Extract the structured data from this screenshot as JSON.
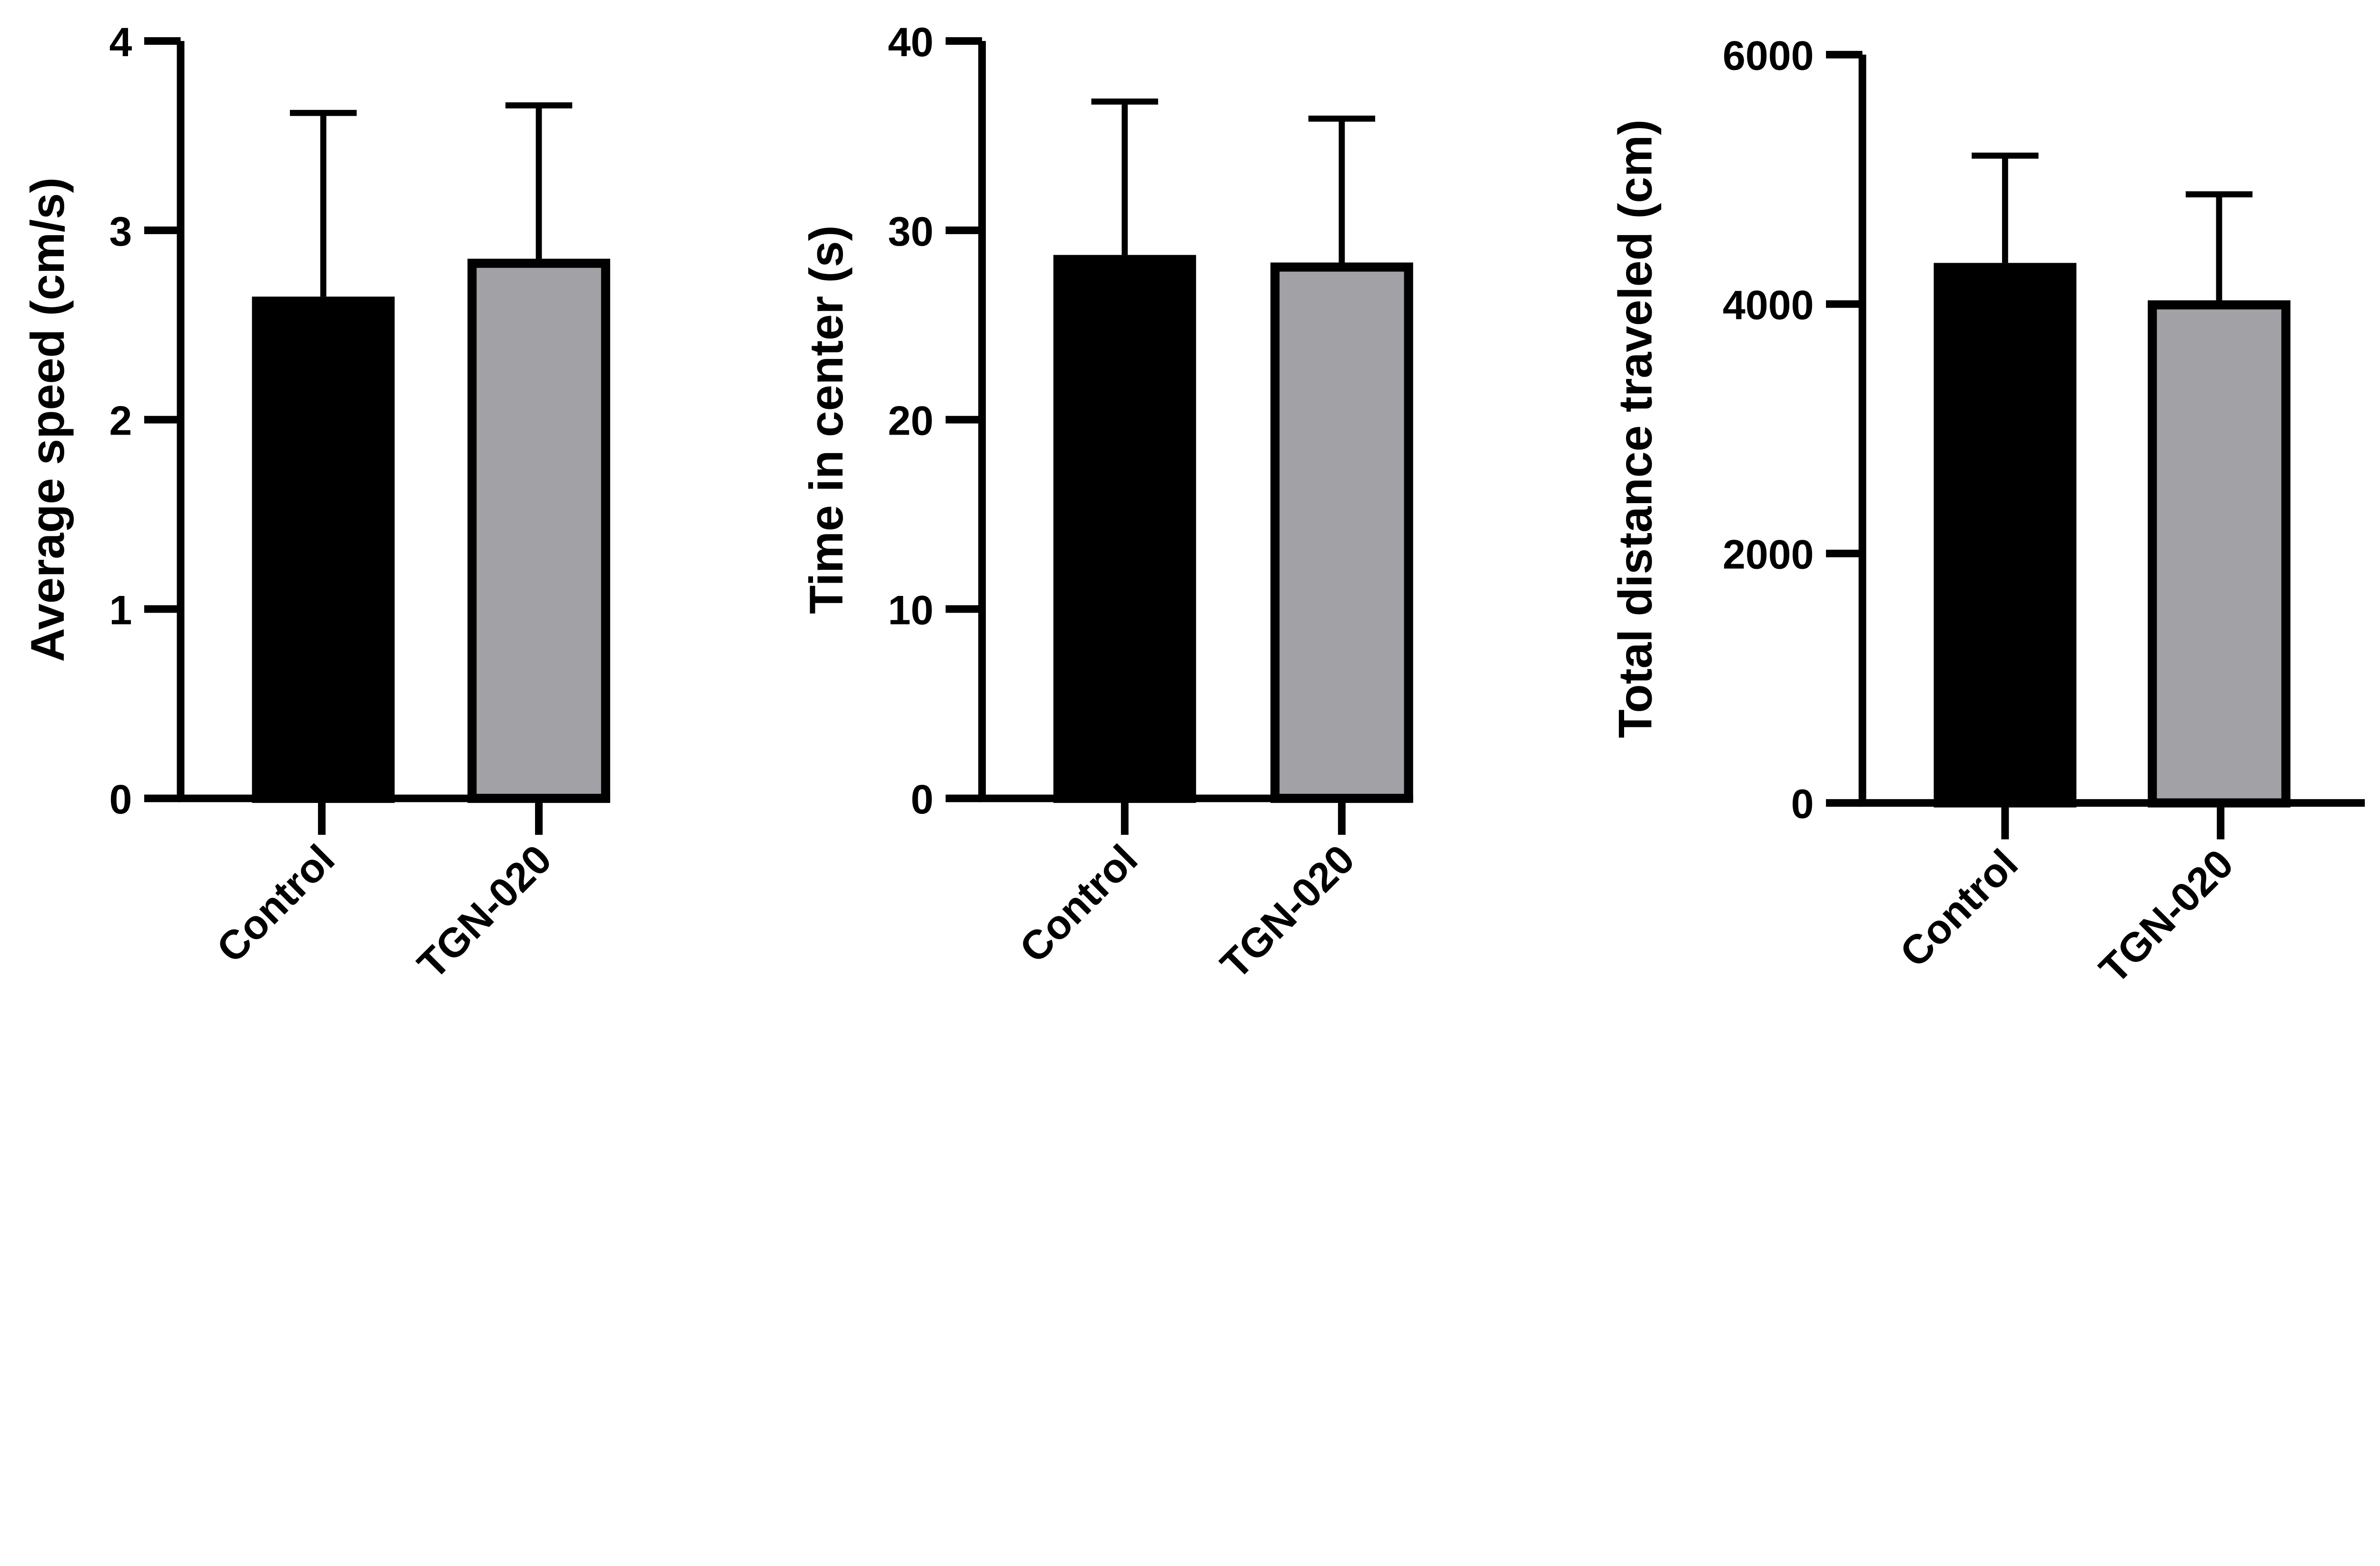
{
  "chart_data": [
    {
      "type": "bar",
      "categories": [
        "Control",
        "TGN-020"
      ],
      "values": [
        2.65,
        2.85
      ],
      "error_upper": [
        3.62,
        3.66
      ],
      "ylabel": "Average speed (cm/s)",
      "ylim": [
        0,
        4
      ],
      "yticks": [
        "0",
        "1",
        "2",
        "3",
        "4"
      ],
      "grid": false
    },
    {
      "type": "bar",
      "categories": [
        "Control",
        "TGN-020"
      ],
      "values": [
        28.7,
        28.3
      ],
      "error_upper": [
        36.8,
        35.9
      ],
      "ylabel": "Time in center (s)",
      "ylim": [
        0,
        40
      ],
      "yticks": [
        "0",
        "10",
        "20",
        "30",
        "40"
      ],
      "grid": false
    },
    {
      "type": "bar",
      "categories": [
        "Control",
        "TGN-020"
      ],
      "values": [
        4330,
        4030
      ],
      "error_upper": [
        5190,
        4880
      ],
      "ylabel": "Total distance traveled (cm)",
      "ylim": [
        0,
        6000
      ],
      "yticks": [
        "0",
        "2000",
        "4000",
        "6000"
      ],
      "grid": false
    }
  ],
  "colors": {
    "Control": "#000000",
    "TGN-020": "#a2a1a5",
    "outline": "#000000"
  }
}
